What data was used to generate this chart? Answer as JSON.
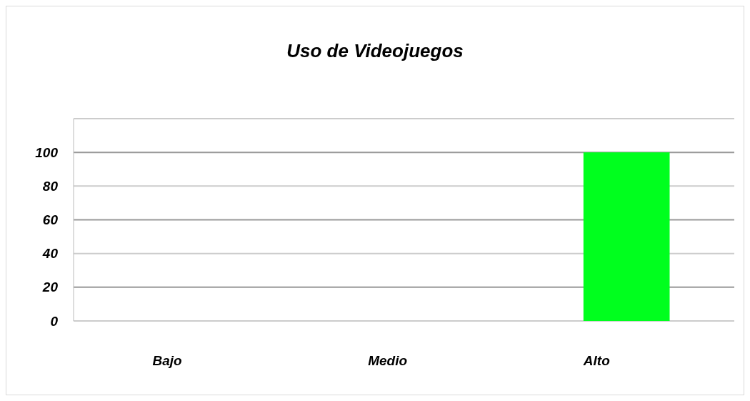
{
  "chart_data": {
    "type": "bar",
    "title": "Uso de Videojuegos",
    "categories": [
      "Bajo",
      "Medio",
      "Alto"
    ],
    "values": [
      0,
      0,
      100
    ],
    "colors": [
      "#5b2a86",
      "#c4c400",
      "#00ff1e"
    ],
    "ylim": [
      0,
      120
    ],
    "yticks": [
      0,
      20,
      40,
      60,
      80,
      100,
      {
        "value": 120,
        "label": null
      }
    ],
    "grid": "y"
  }
}
